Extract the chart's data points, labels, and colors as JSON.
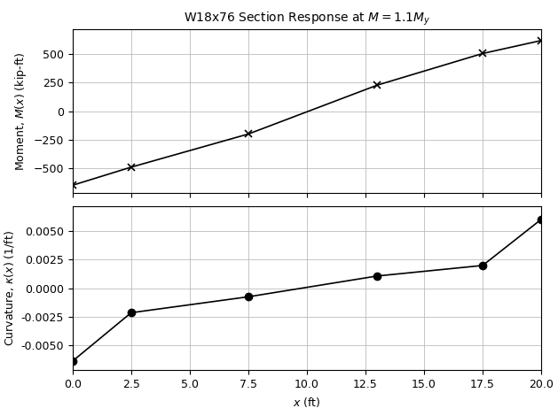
{
  "title": "W18x76 Section Response at $M=1.1M_y$",
  "x_points": [
    0.0,
    2.5,
    7.5,
    13.0,
    17.5,
    20.0
  ],
  "moment_values": [
    -651.0,
    -492.0,
    -201.0,
    228.0,
    506.0,
    620.0
  ],
  "curvature_values": [
    -0.0064,
    -0.00215,
    -0.00075,
    0.001075,
    0.002,
    0.00605
  ],
  "moment_ylabel": "Moment, $M(x)$ (kip-ft)",
  "curvature_ylabel": "Curvature, $\\kappa(x)$ (1/ft)",
  "xlabel": "$x$ (ft)",
  "xlim": [
    0.0,
    20.0
  ],
  "moment_ylim": [
    -720,
    720
  ],
  "curvature_ylim": [
    -0.0072,
    0.0072
  ],
  "moment_yticks": [
    -500,
    -250,
    0,
    250,
    500
  ],
  "curvature_yticks": [
    -0.005,
    -0.0025,
    0.0,
    0.0025,
    0.005
  ],
  "xticks": [
    0.0,
    2.5,
    5.0,
    7.5,
    10.0,
    12.5,
    15.0,
    17.5,
    20.0
  ],
  "line_color": "black",
  "moment_marker": "x",
  "curvature_marker": "o",
  "marker_size": 6,
  "linewidth": 1.2,
  "grid_color": "#bbbbbb",
  "background_color": "white",
  "title_fontsize": 10,
  "label_fontsize": 9,
  "tick_fontsize": 9
}
